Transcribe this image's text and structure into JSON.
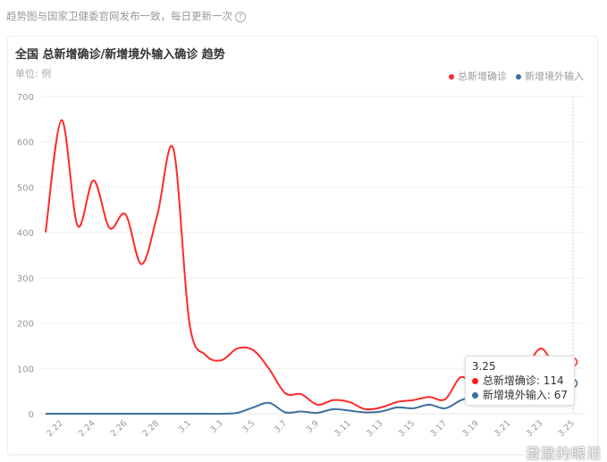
{
  "note": "趋势图与国家卫健委官网发布一致，每日更新一次",
  "help_icon": "question-circle-icon",
  "watermark": "澄澈的眼泪",
  "chart_data": {
    "type": "line",
    "title": "全国 总新增确诊/新增境外输入确诊 趋势",
    "unit_label": "单位: 例",
    "legend_position": "top-right",
    "ylim": [
      0,
      700
    ],
    "yticks": [
      "0",
      "100",
      "200",
      "300",
      "400",
      "500",
      "600",
      "700"
    ],
    "grid": true,
    "x": [
      "2.21",
      "2.22",
      "2.23",
      "2.24",
      "2.25",
      "2.26",
      "2.27",
      "2.28",
      "2.29",
      "3.1",
      "3.2",
      "3.3",
      "3.4",
      "3.5",
      "3.6",
      "3.7",
      "3.8",
      "3.9",
      "3.10",
      "3.11",
      "3.12",
      "3.13",
      "3.14",
      "3.15",
      "3.16",
      "3.17",
      "3.18",
      "3.19",
      "3.20",
      "3.21",
      "3.22",
      "3.23",
      "3.24",
      "3.25"
    ],
    "xtick_labels": [
      "2.22",
      "2.24",
      "2.26",
      "2.28",
      "3.1",
      "3.3",
      "3.5",
      "3.7",
      "3.9",
      "3.11",
      "3.13",
      "3.15",
      "3.17",
      "3.19",
      "3.21",
      "3.23",
      "3.25"
    ],
    "series": [
      {
        "name": "总新增确诊",
        "color": "#ff2a2a",
        "values": [
          400,
          648,
          415,
          515,
          410,
          440,
          330,
          440,
          584,
          200,
          130,
          118,
          144,
          140,
          98,
          45,
          43,
          20,
          30,
          26,
          10,
          14,
          26,
          30,
          37,
          32,
          81,
          59,
          114,
          81,
          99,
          144,
          99,
          114
        ]
      },
      {
        "name": "新增境外输入",
        "color": "#3d6f9e",
        "values": [
          0,
          0,
          0,
          0,
          0,
          0,
          0,
          0,
          0,
          0,
          0,
          0,
          2,
          14,
          24,
          3,
          5,
          2,
          10,
          7,
          3,
          5,
          14,
          12,
          20,
          12,
          30,
          40,
          39,
          45,
          39,
          50,
          47,
          67
        ]
      }
    ],
    "tooltip": {
      "date": "3.25",
      "rows": [
        {
          "label": "总新增确诊: 114"
        },
        {
          "label": "新增境外输入: 67"
        }
      ]
    }
  }
}
